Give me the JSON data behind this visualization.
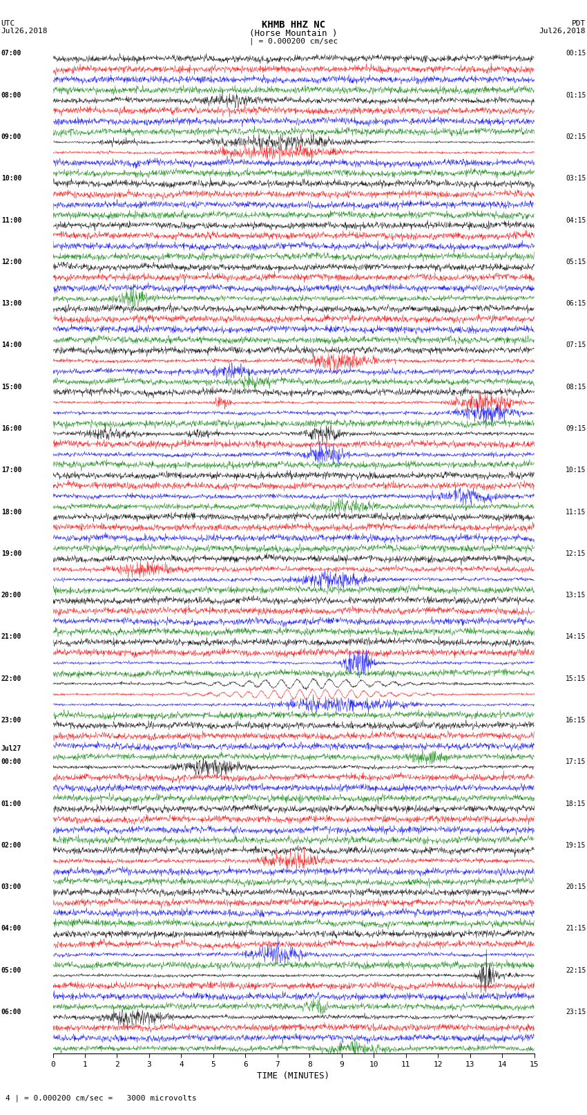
{
  "title_line1": "KHMB HHZ NC",
  "title_line2": "(Horse Mountain )",
  "title_line3": "| = 0.000200 cm/sec",
  "left_header_line1": "UTC",
  "left_header_line2": "Jul26,2018",
  "right_header_line1": "PDT",
  "right_header_line2": "Jul26,2018",
  "xlabel": "TIME (MINUTES)",
  "footnote": "4 | = 0.000200 cm/sec =   3000 microvolts",
  "utc_hour_labels": [
    "07:00",
    "08:00",
    "09:00",
    "10:00",
    "11:00",
    "12:00",
    "13:00",
    "14:00",
    "15:00",
    "16:00",
    "17:00",
    "18:00",
    "19:00",
    "20:00",
    "21:00",
    "22:00",
    "23:00",
    "Jul27",
    "00:00",
    "01:00",
    "02:00",
    "03:00",
    "04:00",
    "05:00",
    "06:00"
  ],
  "pdt_hour_labels": [
    "00:15",
    "01:15",
    "02:15",
    "03:15",
    "04:15",
    "05:15",
    "06:15",
    "07:15",
    "08:15",
    "09:15",
    "10:15",
    "11:15",
    "12:15",
    "13:15",
    "14:15",
    "15:15",
    "16:15",
    "17:15",
    "18:15",
    "19:15",
    "20:15",
    "21:15",
    "22:15",
    "23:15"
  ],
  "colors": [
    "black",
    "red",
    "blue",
    "green"
  ],
  "n_hours": 24,
  "n_traces_per_hour": 4,
  "x_min": 0,
  "x_max": 15,
  "bg_color": "white",
  "amp_scale": 0.38,
  "noise_base": 0.1,
  "n_points": 1500
}
